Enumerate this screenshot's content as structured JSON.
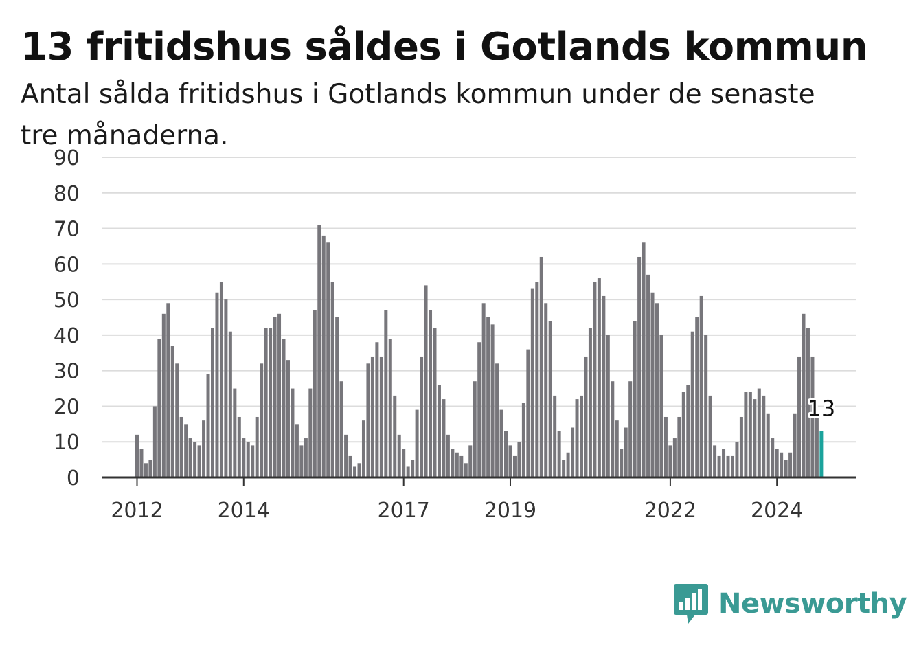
{
  "title": "13 fritidshus såldes i Gotlands kommun",
  "subtitle": "Antal sålda fritidshus i Gotlands kommun under de senaste tre månaderna.",
  "brand": {
    "name": "Newsworthy",
    "icon": "bar-chart-bubble-icon",
    "color": "#3a9a94"
  },
  "colors": {
    "bar": "#77767b",
    "highlight": "#1ba39c",
    "grid": "#dcdcdc",
    "axis": "#333333"
  },
  "chart_data": {
    "type": "bar",
    "title": "13 fritidshus såldes i Gotlands kommun",
    "subtitle": "Antal sålda fritidshus i Gotlands kommun under de senaste tre månaderna.",
    "xlabel": "",
    "ylabel": "",
    "ylim": [
      0,
      90
    ],
    "y_ticks": [
      0,
      10,
      20,
      30,
      40,
      50,
      60,
      70,
      80,
      90
    ],
    "x_ticks": [
      {
        "label": "2012",
        "index": 0
      },
      {
        "label": "2014",
        "index": 24
      },
      {
        "label": "2017",
        "index": 60
      },
      {
        "label": "2019",
        "index": 84
      },
      {
        "label": "2022",
        "index": 120
      },
      {
        "label": "2024",
        "index": 144
      }
    ],
    "grid": true,
    "start": "2012-01",
    "frequency": "monthly",
    "highlight_last": true,
    "highlight_label": "13",
    "values": [
      12,
      8,
      4,
      5,
      20,
      39,
      46,
      49,
      37,
      32,
      17,
      15,
      11,
      10,
      9,
      16,
      29,
      42,
      52,
      55,
      50,
      41,
      25,
      17,
      11,
      10,
      9,
      17,
      32,
      42,
      42,
      45,
      46,
      39,
      33,
      25,
      15,
      9,
      11,
      25,
      47,
      71,
      68,
      66,
      55,
      45,
      27,
      12,
      6,
      3,
      4,
      16,
      32,
      34,
      38,
      34,
      47,
      39,
      23,
      12,
      8,
      3,
      5,
      19,
      34,
      54,
      47,
      42,
      26,
      22,
      12,
      8,
      7,
      6,
      4,
      9,
      27,
      38,
      49,
      45,
      43,
      32,
      19,
      13,
      9,
      6,
      10,
      21,
      36,
      53,
      55,
      62,
      49,
      44,
      23,
      13,
      5,
      7,
      14,
      22,
      23,
      34,
      42,
      55,
      56,
      51,
      40,
      27,
      16,
      8,
      14,
      27,
      44,
      62,
      66,
      57,
      52,
      49,
      40,
      17,
      9,
      11,
      17,
      24,
      26,
      41,
      45,
      51,
      40,
      23,
      9,
      6,
      8,
      6,
      6,
      10,
      17,
      24,
      24,
      22,
      25,
      23,
      18,
      11,
      8,
      7,
      5,
      7,
      18,
      34,
      46,
      42,
      34,
      18,
      13
    ]
  }
}
